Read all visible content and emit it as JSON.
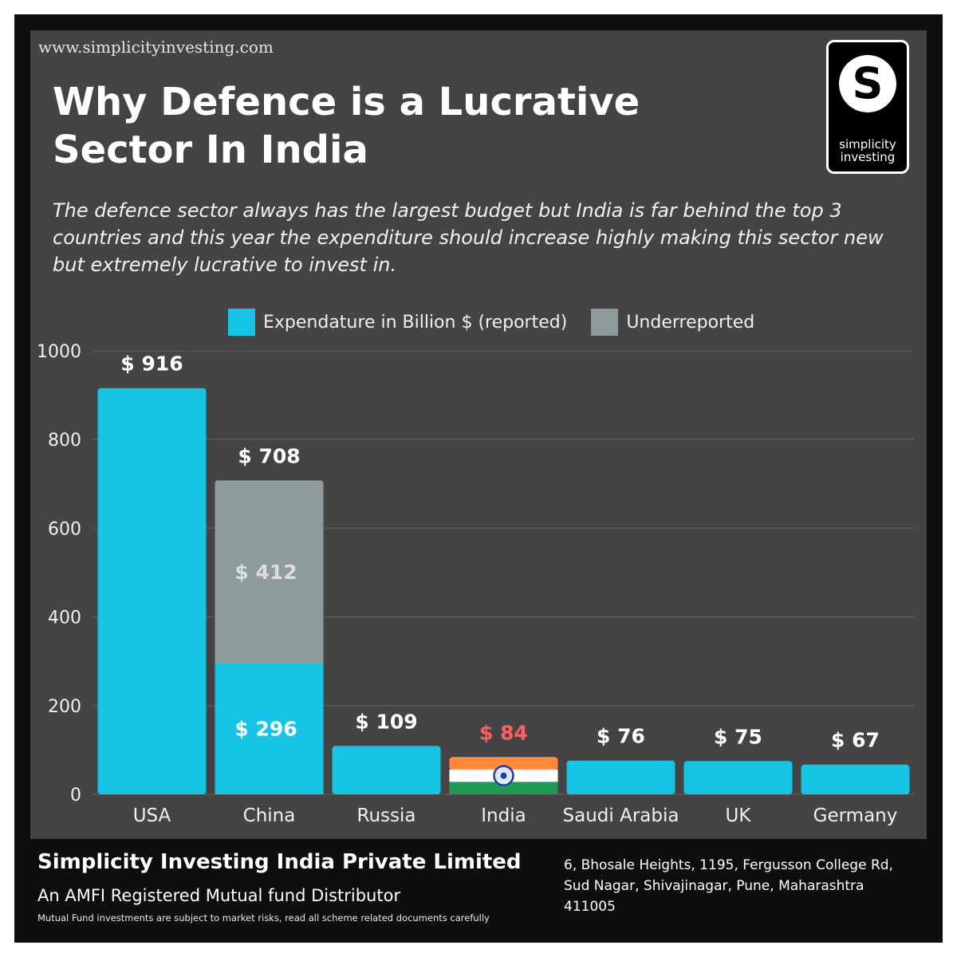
{
  "website": "www.simplicityinvesting.com",
  "title_line1": "Why Defence is a Lucrative",
  "title_line2": "Sector In India",
  "subtitle": "The defence sector always has the largest budget but India is far behind the top 3 countries and this year the expenditure should increase highly making this sector new but extremely lucrative to invest in.",
  "logo": {
    "letter": "S",
    "line1": "simplicity",
    "line2": "investing"
  },
  "colors": {
    "reported": "#16c5e5",
    "underreported": "#8e9b9c",
    "india_label": "#ff5f5f",
    "saffron": "#ff8a3d",
    "white": "#ffffff",
    "green": "#1f9a52",
    "chakra": "#1f3fa0"
  },
  "legend": {
    "reported": "Expendature in Billion $ (reported)",
    "underreported": "Underreported"
  },
  "chart_data": {
    "type": "bar",
    "stacked": true,
    "categories": [
      "USA",
      "China",
      "Russia",
      "India",
      "Saudi Arabia",
      "UK",
      "Germany"
    ],
    "series": [
      {
        "name": "Expendature in Billion $ (reported)",
        "values": [
          916,
          296,
          109,
          84,
          76,
          75,
          67
        ]
      },
      {
        "name": "Underreported",
        "values": [
          0,
          412,
          0,
          0,
          0,
          0,
          0
        ]
      }
    ],
    "data_labels": {
      "total": [
        "$ 916",
        "$ 708",
        "$ 109",
        "$ 84",
        "$ 76",
        "$ 75",
        "$ 67"
      ],
      "china_reported": "$ 296",
      "china_underreported": "$ 412"
    },
    "highlight_category": "India",
    "y_ticks": [
      0,
      200,
      400,
      600,
      800,
      1000
    ],
    "ylim": [
      0,
      1000
    ],
    "grid": true,
    "legend_position": "top"
  },
  "footer": {
    "company": "Simplicity Investing India Private Limited",
    "tagline": "An AMFI Registered Mutual fund Distributor",
    "disclaimer": "Mutual Fund investments are subject to market risks, read all scheme related documents carefully",
    "address_line1": "6, Bhosale Heights, 1195, Fergusson College Rd,",
    "address_line2": "Sud Nagar, Shivajinagar, Pune, Maharashtra",
    "address_line3": "411005"
  }
}
